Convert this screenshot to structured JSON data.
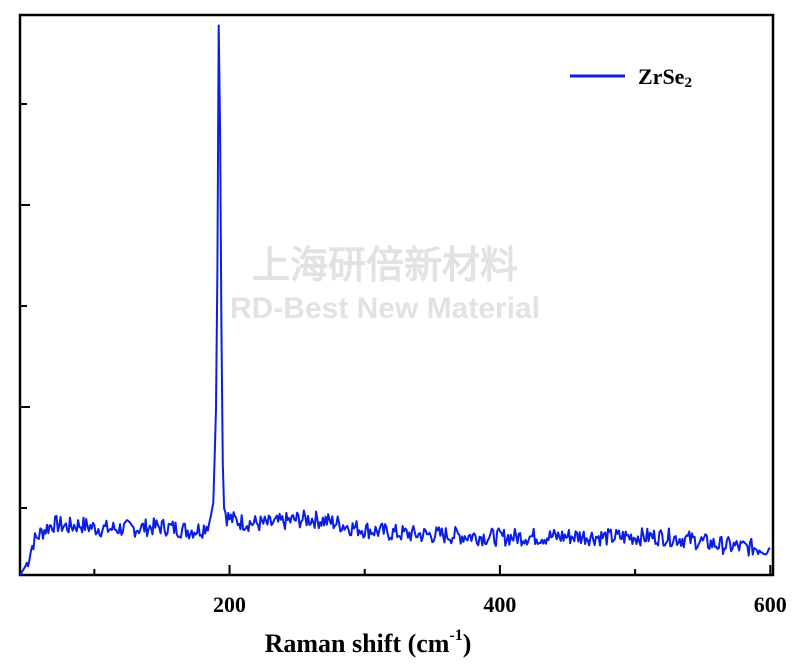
{
  "chart_data": {
    "type": "line",
    "title": "",
    "xlabel": "Raman shift (cm",
    "xlabel_sup": "-1",
    "xlabel_close": ")",
    "ylabel": "",
    "xlim": [
      45,
      602
    ],
    "ylim": [
      0,
      100
    ],
    "xticks": [
      200,
      400,
      600
    ],
    "legend": {
      "position": "top-right"
    },
    "grid": false,
    "series": [
      {
        "name": "ZrSe2",
        "name_main": "ZrSe",
        "name_sub": "2",
        "color": "#0a1ee6",
        "x": [
          45,
          50,
          55,
          60,
          65,
          70,
          75,
          80,
          85,
          90,
          95,
          100,
          110,
          120,
          130,
          140,
          150,
          160,
          170,
          180,
          185,
          188,
          190,
          191,
          192,
          193,
          194,
          195,
          196,
          198,
          200,
          205,
          210,
          220,
          230,
          240,
          250,
          260,
          270,
          280,
          290,
          300,
          320,
          340,
          360,
          380,
          400,
          420,
          440,
          460,
          480,
          500,
          520,
          540,
          560,
          580,
          600
        ],
        "y": [
          0,
          2,
          6,
          7.5,
          8.5,
          9.2,
          9.0,
          8.7,
          8.9,
          9.1,
          8.8,
          8.5,
          8.3,
          8.4,
          8.4,
          8.6,
          8.7,
          8.4,
          8.0,
          8.3,
          9.5,
          13,
          30,
          55,
          99,
          80,
          45,
          20,
          12,
          10.5,
          10.2,
          9.8,
          9.5,
          9.3,
          9.2,
          9.6,
          10.0,
          10.1,
          9.8,
          9.3,
          8.6,
          8.2,
          7.6,
          7.3,
          7.2,
          7.0,
          6.8,
          6.9,
          6.9,
          7.0,
          6.8,
          6.9,
          6.9,
          6.4,
          5.5,
          5.0,
          4.8
        ]
      }
    ]
  },
  "watermark": {
    "line1": "上海研倍新材料",
    "line2": "RD-Best New Material"
  }
}
